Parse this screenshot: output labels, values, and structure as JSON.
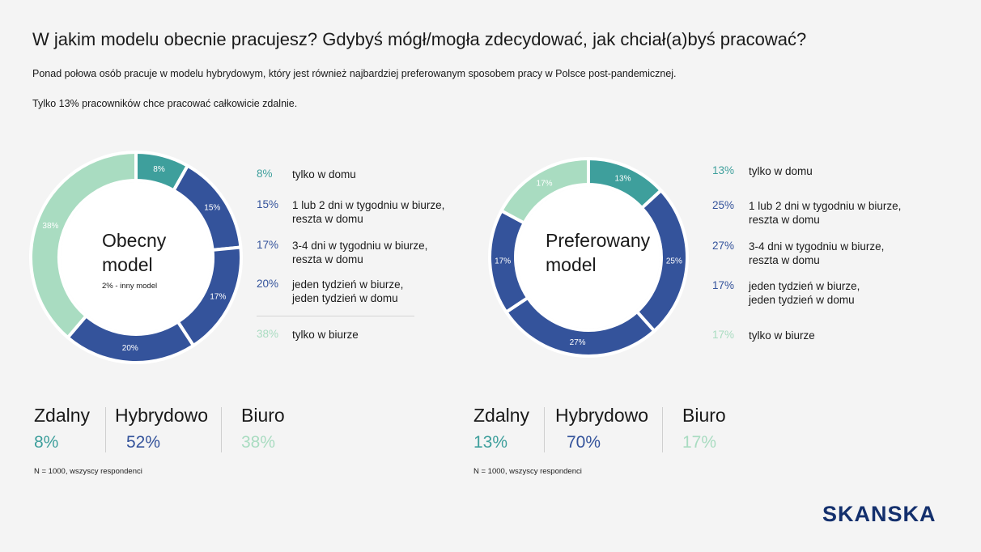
{
  "header": {
    "title": "W jakim modelu obecnie pracujesz? Gdybyś mógł/mogła zdecydować, jak chciał(a)byś pracować?",
    "subtitle": "Ponad połowa osób pracuje w modelu hybrydowym, który jest również najbardziej preferowanym sposobem pracy w Polsce post-pandemicznej.",
    "note": "Tylko 13% pracowników chce pracować całkowicie zdalnie."
  },
  "chart_data": [
    {
      "type": "donut",
      "center_label": "Obecny\nmodel",
      "note": "2% - inny model",
      "categories": [
        "tylko w domu",
        "1 lub 2 dni w tygodniu w biurze,\nreszta w domu",
        "3-4 dni w tygodniu w biurze,\nreszta w domu",
        "jeden tydzień w biurze,\njeden tydzień w domu",
        "tylko w biurze"
      ],
      "values": [
        8,
        15,
        17,
        20,
        38
      ],
      "value_labels": [
        "8%",
        "15%",
        "17%",
        "20%",
        "38%"
      ],
      "colors": [
        "#3e9f9c",
        "#34539b",
        "#34539b",
        "#34539b",
        "#a9dcc1"
      ],
      "summary": [
        {
          "name": "Zdalny",
          "label": "8%",
          "color": "#3e9f9c"
        },
        {
          "name": "Hybrydowo",
          "label": "52%",
          "color": "#34539b"
        },
        {
          "name": "Biuro",
          "label": "38%",
          "color": "#a9dcc1"
        }
      ],
      "footnote": "N = 1000, wszyscy respondenci"
    },
    {
      "type": "donut",
      "center_label": "Preferowany\nmodel",
      "categories": [
        "tylko w domu",
        "1 lub 2 dni w tygodniu w biurze,\nreszta w domu",
        "3-4 dni w tygodniu w biurze,\nreszta w domu",
        "jeden tydzień w biurze,\njeden tydzień w domu",
        "tylko w biurze"
      ],
      "values": [
        13,
        25,
        27,
        17,
        17
      ],
      "value_labels": [
        "13%",
        "25%",
        "27%",
        "17%",
        "17%"
      ],
      "colors": [
        "#3e9f9c",
        "#34539b",
        "#34539b",
        "#34539b",
        "#a9dcc1"
      ],
      "summary": [
        {
          "name": "Zdalny",
          "label": "13%",
          "color": "#3e9f9c"
        },
        {
          "name": "Hybrydowo",
          "label": "70%",
          "color": "#34539b"
        },
        {
          "name": "Biuro",
          "label": "17%",
          "color": "#a9dcc1"
        }
      ],
      "footnote": "N = 1000, wszyscy respondenci"
    }
  ],
  "logo": "SKANSKA"
}
